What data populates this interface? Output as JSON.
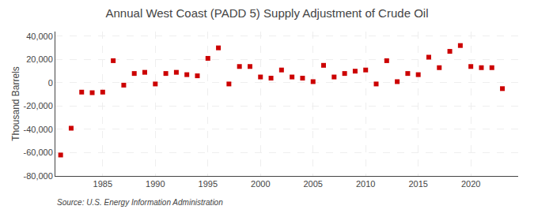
{
  "chart_data": {
    "type": "scatter",
    "title": "Annual West Coast (PADD 5) Supply Adjustment of Crude Oil",
    "ylabel": "Thousand Barrels",
    "annotations": [
      "Source: U.S. Energy Information Administration"
    ],
    "x": [
      1981,
      1982,
      1983,
      1984,
      1985,
      1986,
      1987,
      1988,
      1989,
      1990,
      1991,
      1992,
      1993,
      1994,
      1995,
      1996,
      1997,
      1998,
      1999,
      2000,
      2001,
      2002,
      2003,
      2004,
      2005,
      2006,
      2007,
      2008,
      2009,
      2010,
      2011,
      2012,
      2013,
      2014,
      2015,
      2016,
      2017,
      2018,
      2019,
      2020,
      2021,
      2022,
      2023
    ],
    "values": [
      -62000,
      -39000,
      -8000,
      -8500,
      -8000,
      19000,
      -2000,
      8000,
      9000,
      -1000,
      8000,
      9000,
      7000,
      6000,
      21000,
      30000,
      -1000,
      14000,
      14000,
      5000,
      4000,
      11000,
      5000,
      4000,
      1000,
      15000,
      5000,
      8000,
      10000,
      11000,
      -1000,
      19000,
      1000,
      8000,
      7000,
      22000,
      13000,
      27000,
      32000,
      14000,
      13000,
      13000,
      -5000
    ],
    "color": "#cc0000",
    "marker": "square",
    "xlim": [
      1980.5,
      2024.5
    ],
    "xticks": [
      1985,
      1990,
      1995,
      2000,
      2005,
      2010,
      2015,
      2020
    ],
    "ylim": [
      -80000,
      44000
    ],
    "yticks": [
      {
        "value": -80000,
        "label": "-80,000"
      },
      {
        "value": -60000,
        "label": "-60,000"
      },
      {
        "value": -40000,
        "label": "-40,000"
      },
      {
        "value": -20000,
        "label": "-20,000"
      },
      0,
      {
        "value": 20000,
        "label": "20,000"
      },
      {
        "value": 40000,
        "label": "40,000"
      }
    ],
    "grid": true
  }
}
